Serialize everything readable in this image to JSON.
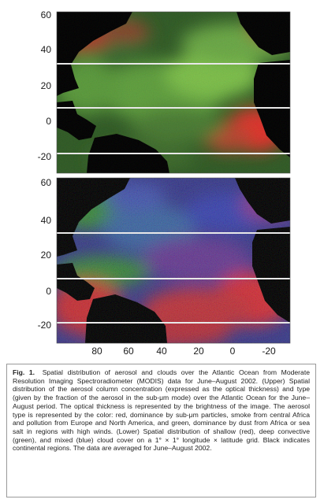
{
  "figure": {
    "upper_panel": {
      "y_ticks": [
        "60",
        "40",
        "20",
        "0",
        "-20"
      ]
    },
    "lower_panel": {
      "y_ticks": [
        "60",
        "40",
        "20",
        "0",
        "-20"
      ],
      "x_ticks": [
        "80",
        "60",
        "40",
        "20",
        "0",
        "-20"
      ]
    },
    "colors": {
      "land": "#000000",
      "gridline": "#e8e8e8",
      "upper_sub_um_dominance": "#e0322c",
      "upper_dust_or_sea_salt": "#64b43c",
      "lower_shallow_cloud": "#d7303a",
      "lower_deep_convective_cloud": "#3c8c3c",
      "lower_mixed_cloud": "#3c46b4"
    }
  },
  "caption": {
    "label": "Fig. 1.",
    "text": "Spatial distribution of aerosol and clouds over the Atlantic Ocean from Moderate Resolution Imaging Spectroradiometer (MODIS) data for June–August 2002. (Upper) Spatial distribution of the aerosol column concentration (expressed as the optical thickness) and type (given by the fraction of the aerosol in the sub-μm mode) over the Atlantic Ocean for the June–August period. The optical thickness is represented by the brightness of the image. The aerosol type is represented by the color: red, dominance by sub-μm particles, smoke from central Africa and pollution from Europe and North America, and green, dominance by dust from Africa or sea salt in regions with high winds. (Lower) Spatial distribution of shallow (red), deep convective (green), and mixed (blue) cloud cover on a 1° × 1° longitude × latitude grid. Black indicates continental regions. The data are averaged for June–August 2002."
  }
}
